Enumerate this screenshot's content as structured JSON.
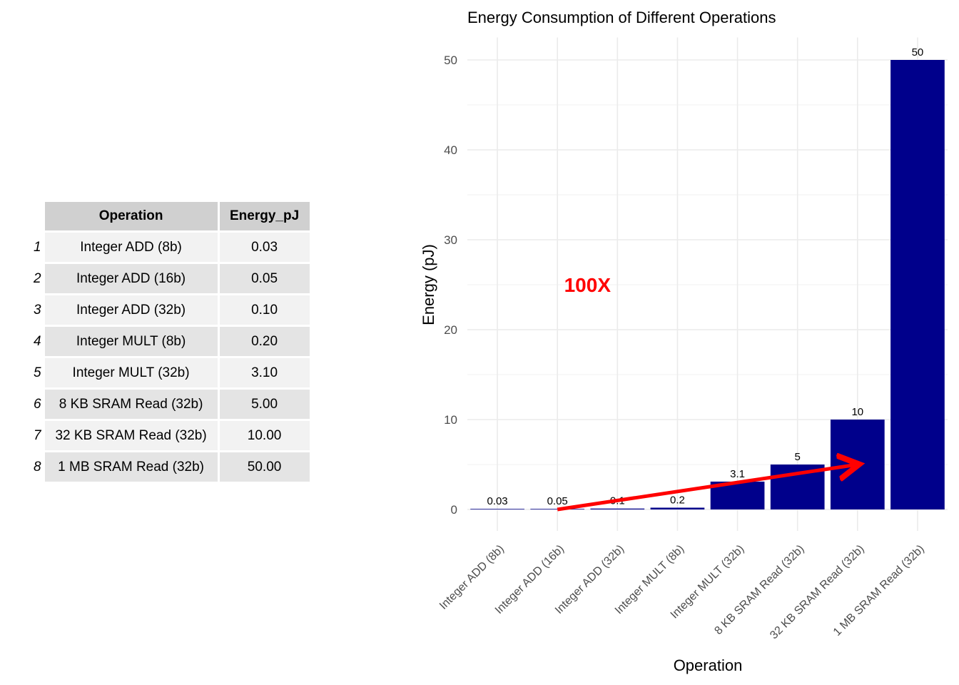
{
  "table": {
    "headers": [
      "Operation",
      "Energy_pJ"
    ],
    "rows": [
      {
        "index": "1",
        "operation": "Integer ADD (8b)",
        "energy": "0.03"
      },
      {
        "index": "2",
        "operation": "Integer ADD (16b)",
        "energy": "0.05"
      },
      {
        "index": "3",
        "operation": "Integer ADD (32b)",
        "energy": "0.10"
      },
      {
        "index": "4",
        "operation": "Integer MULT (8b)",
        "energy": "0.20"
      },
      {
        "index": "5",
        "operation": "Integer MULT (32b)",
        "energy": "3.10"
      },
      {
        "index": "6",
        "operation": "8 KB SRAM Read (32b)",
        "energy": "5.00"
      },
      {
        "index": "7",
        "operation": "32 KB SRAM Read (32b)",
        "energy": "10.00"
      },
      {
        "index": "8",
        "operation": "1 MB SRAM Read (32b)",
        "energy": "50.00"
      }
    ]
  },
  "chart_data": {
    "type": "bar",
    "title": "Energy Consumption of Different Operations",
    "xlabel": "Operation",
    "ylabel": "Energy (pJ)",
    "categories": [
      "Integer ADD (8b)",
      "Integer ADD (16b)",
      "Integer ADD (32b)",
      "Integer MULT (8b)",
      "Integer MULT (32b)",
      "8 KB SRAM Read (32b)",
      "32 KB SRAM Read (32b)",
      "1 MB SRAM Read (32b)"
    ],
    "values": [
      0.03,
      0.05,
      0.1,
      0.2,
      3.1,
      5,
      10,
      50
    ],
    "data_labels": [
      "0.03",
      "0.05",
      "0.1",
      "0.2",
      "3.1",
      "5",
      "10",
      "50"
    ],
    "ylim": [
      0,
      52.5
    ],
    "yticks": [
      0,
      10,
      20,
      30,
      40,
      50
    ],
    "grid": true,
    "bar_color": "#00008B",
    "annotation": {
      "text": "100X",
      "color": "#FF0000",
      "x_category": "Integer ADD (32b)",
      "y": 25
    },
    "arrow": {
      "color": "#FF0000",
      "from_category": "Integer ADD (16b)",
      "from_y": 0,
      "to_category": "32 KB SRAM Read (32b)",
      "to_y": 5
    }
  }
}
